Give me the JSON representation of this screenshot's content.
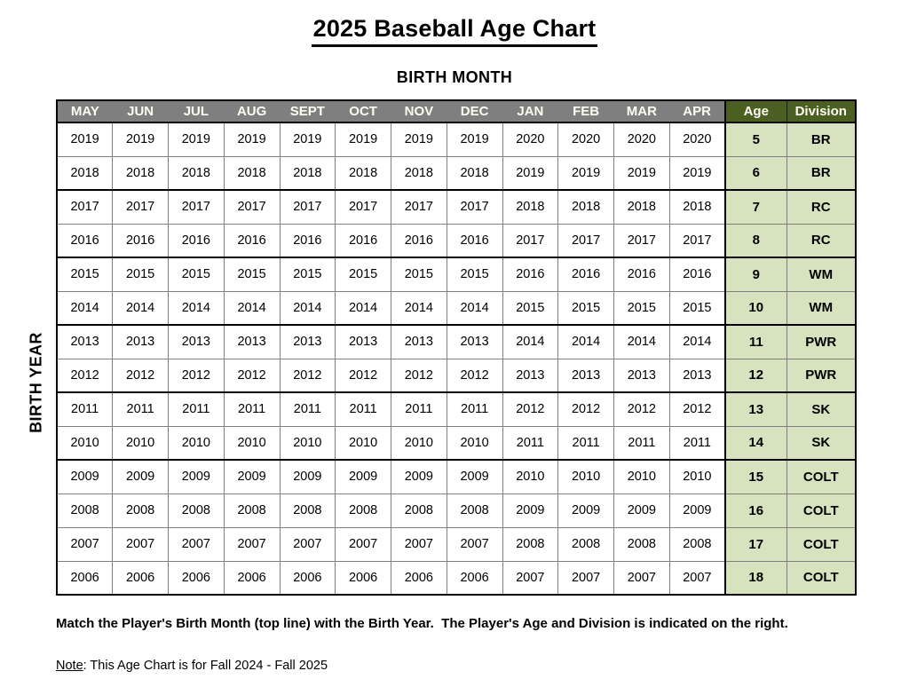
{
  "page": {
    "title": "2025 Baseball Age Chart",
    "subtitle": "BIRTH MONTH",
    "left_axis_label": "BIRTH YEAR",
    "instruction": "Match the Player's Birth Month (top line) with the Birth Year.  The Player's Age and Division is indicated on the right.",
    "note_label": "Note",
    "note_rest": ": This Age Chart is for Fall 2024 - Fall 2025"
  },
  "colors": {
    "month_header_bg": "#7f7f7f",
    "age_division_header_bg": "#4c5f23",
    "age_division_cell_bg": "#d7e3bf",
    "thin_border": "#7f7f7f",
    "thick_border": "#000000"
  },
  "table": {
    "month_headers": [
      "MAY",
      "JUN",
      "JUL",
      "AUG",
      "SEPT",
      "OCT",
      "NOV",
      "DEC",
      "JAN",
      "FEB",
      "MAR",
      "APR"
    ],
    "age_header": "Age",
    "division_header": "Division",
    "rows": [
      {
        "years": [
          "2019",
          "2019",
          "2019",
          "2019",
          "2019",
          "2019",
          "2019",
          "2019",
          "2020",
          "2020",
          "2020",
          "2020"
        ],
        "age": "5",
        "division": "BR",
        "group_start": false
      },
      {
        "years": [
          "2018",
          "2018",
          "2018",
          "2018",
          "2018",
          "2018",
          "2018",
          "2018",
          "2019",
          "2019",
          "2019",
          "2019"
        ],
        "age": "6",
        "division": "BR",
        "group_start": false
      },
      {
        "years": [
          "2017",
          "2017",
          "2017",
          "2017",
          "2017",
          "2017",
          "2017",
          "2017",
          "2018",
          "2018",
          "2018",
          "2018"
        ],
        "age": "7",
        "division": "RC",
        "group_start": true
      },
      {
        "years": [
          "2016",
          "2016",
          "2016",
          "2016",
          "2016",
          "2016",
          "2016",
          "2016",
          "2017",
          "2017",
          "2017",
          "2017"
        ],
        "age": "8",
        "division": "RC",
        "group_start": false
      },
      {
        "years": [
          "2015",
          "2015",
          "2015",
          "2015",
          "2015",
          "2015",
          "2015",
          "2015",
          "2016",
          "2016",
          "2016",
          "2016"
        ],
        "age": "9",
        "division": "WM",
        "group_start": true
      },
      {
        "years": [
          "2014",
          "2014",
          "2014",
          "2014",
          "2014",
          "2014",
          "2014",
          "2014",
          "2015",
          "2015",
          "2015",
          "2015"
        ],
        "age": "10",
        "division": "WM",
        "group_start": false
      },
      {
        "years": [
          "2013",
          "2013",
          "2013",
          "2013",
          "2013",
          "2013",
          "2013",
          "2013",
          "2014",
          "2014",
          "2014",
          "2014"
        ],
        "age": "11",
        "division": "PWR",
        "group_start": true
      },
      {
        "years": [
          "2012",
          "2012",
          "2012",
          "2012",
          "2012",
          "2012",
          "2012",
          "2012",
          "2013",
          "2013",
          "2013",
          "2013"
        ],
        "age": "12",
        "division": "PWR",
        "group_start": false
      },
      {
        "years": [
          "2011",
          "2011",
          "2011",
          "2011",
          "2011",
          "2011",
          "2011",
          "2011",
          "2012",
          "2012",
          "2012",
          "2012"
        ],
        "age": "13",
        "division": "SK",
        "group_start": true
      },
      {
        "years": [
          "2010",
          "2010",
          "2010",
          "2010",
          "2010",
          "2010",
          "2010",
          "2010",
          "2011",
          "2011",
          "2011",
          "2011"
        ],
        "age": "14",
        "division": "SK",
        "group_start": false
      },
      {
        "years": [
          "2009",
          "2009",
          "2009",
          "2009",
          "2009",
          "2009",
          "2009",
          "2009",
          "2010",
          "2010",
          "2010",
          "2010"
        ],
        "age": "15",
        "division": "COLT",
        "group_start": true
      },
      {
        "years": [
          "2008",
          "2008",
          "2008",
          "2008",
          "2008",
          "2008",
          "2008",
          "2008",
          "2009",
          "2009",
          "2009",
          "2009"
        ],
        "age": "16",
        "division": "COLT",
        "group_start": false
      },
      {
        "years": [
          "2007",
          "2007",
          "2007",
          "2007",
          "2007",
          "2007",
          "2007",
          "2007",
          "2008",
          "2008",
          "2008",
          "2008"
        ],
        "age": "17",
        "division": "COLT",
        "group_start": false
      },
      {
        "years": [
          "2006",
          "2006",
          "2006",
          "2006",
          "2006",
          "2006",
          "2006",
          "2006",
          "2007",
          "2007",
          "2007",
          "2007"
        ],
        "age": "18",
        "division": "COLT",
        "group_start": false
      }
    ]
  }
}
